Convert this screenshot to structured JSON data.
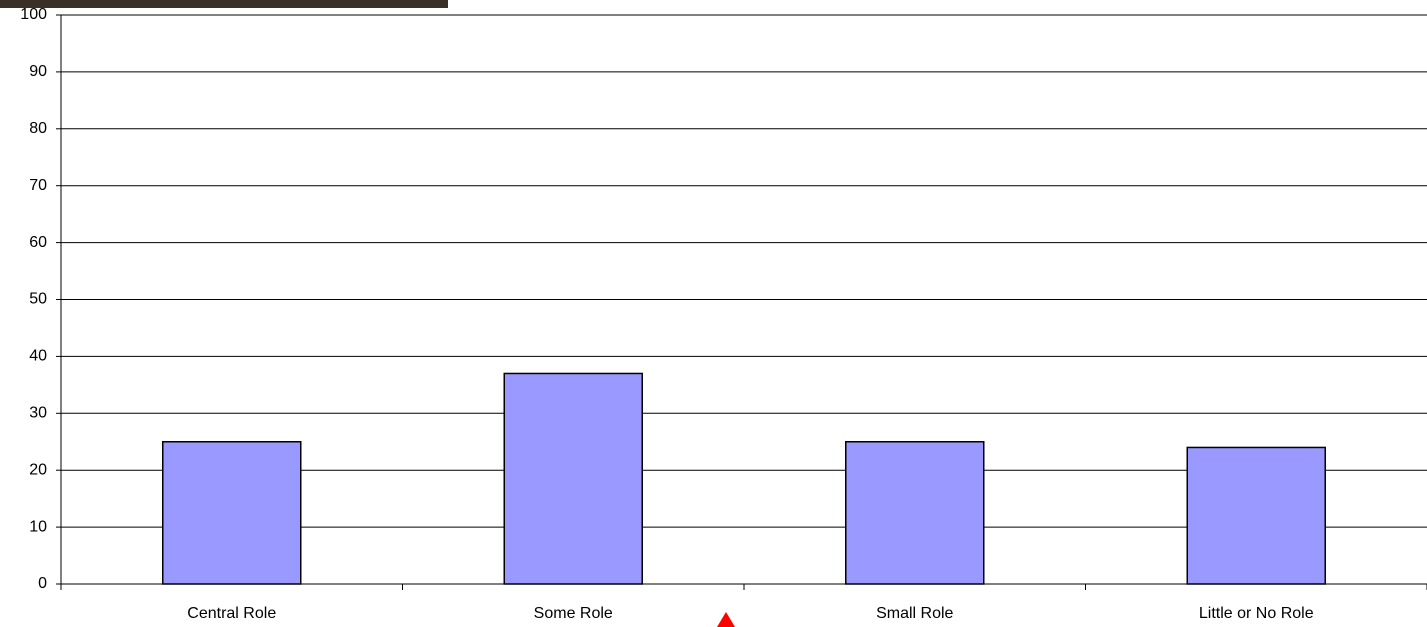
{
  "chart_data": {
    "type": "bar",
    "categories": [
      "Central Role",
      "Some Role",
      "Small Role",
      "Little or No Role"
    ],
    "values": [
      25,
      37,
      25,
      24
    ],
    "color": "#9999ff",
    "ylim": [
      0,
      100
    ],
    "yticks": [
      0,
      10,
      20,
      30,
      40,
      50,
      60,
      70,
      80,
      90,
      100
    ],
    "grid": true
  }
}
